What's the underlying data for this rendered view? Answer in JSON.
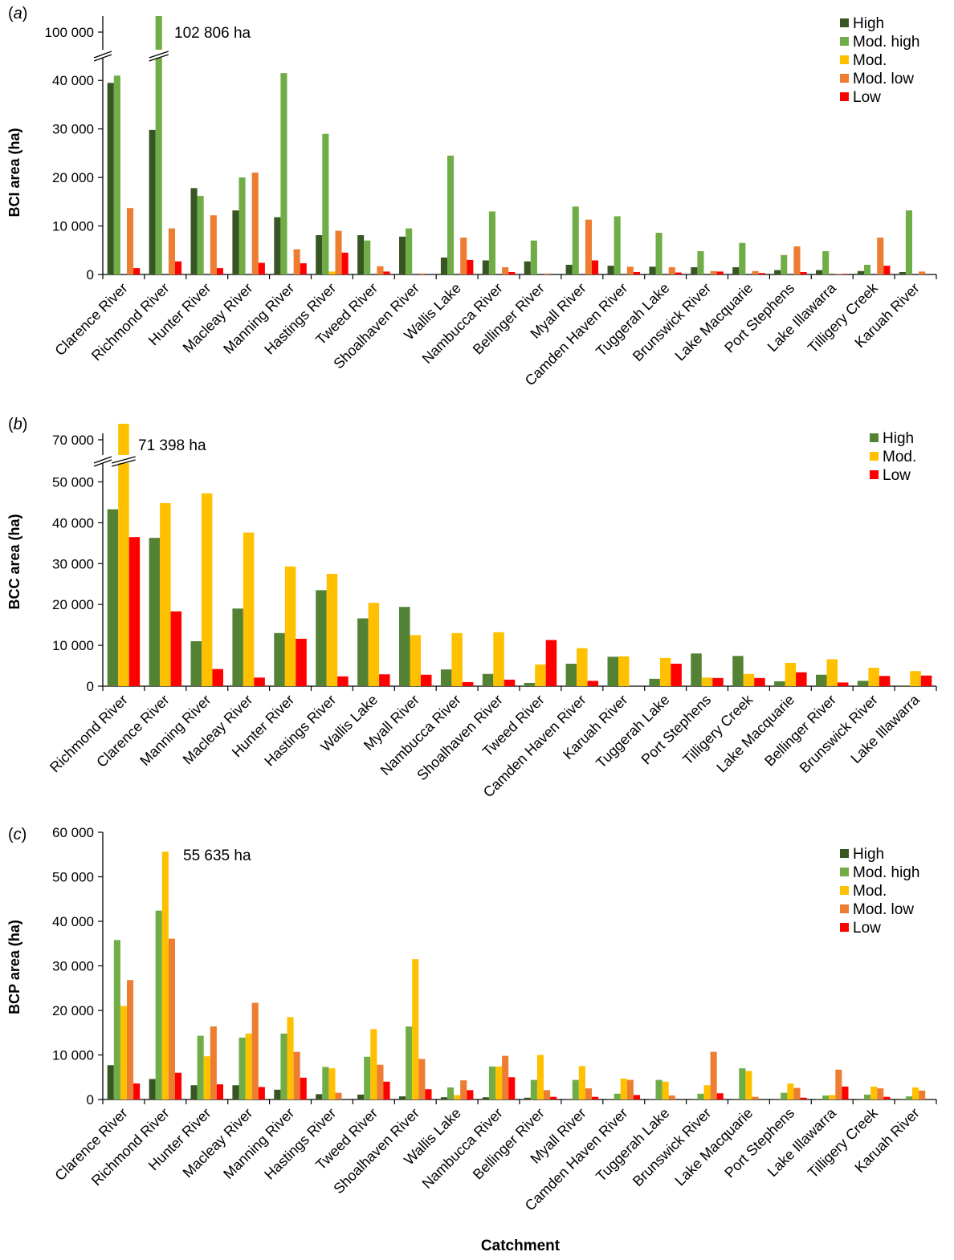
{
  "colors": {
    "High": "#375623",
    "Mod. high": "#70ad47",
    "Mod.": "#ffc000",
    "Mod. low": "#ed7d31",
    "Low": "#ff0000",
    "High_b": "#548235"
  },
  "xlabel": "Catchment",
  "chart_data": [
    {
      "panel": "a",
      "type": "bar",
      "ylabel": "BCI area (ha)",
      "ylim": [
        0,
        45000
      ],
      "yticks": [
        0,
        10000,
        20000,
        30000,
        40000
      ],
      "ytick_labels": [
        "0",
        "10 000",
        "20 000",
        "30 000",
        "40 000"
      ],
      "break_tick_label": "100 000",
      "axis_break": true,
      "annotation": "102 806 ha",
      "legend": [
        "High",
        "Mod. high",
        "Mod.",
        "Mod. low",
        "Low"
      ],
      "legend_position": "top-right",
      "categories": [
        "Clarence River",
        "Richmond River",
        "Hunter River",
        "Macleay River",
        "Manning River",
        "Hastings River",
        "Tweed River",
        "Shoalhaven River",
        "Wallis Lake",
        "Nambucca River",
        "Bellinger River",
        "Myall River",
        "Camden Haven River",
        "Tuggerah Lake",
        "Brunswick River",
        "Lake Macquarie",
        "Port Stephens",
        "Lake Illawarra",
        "Tilligery Creek",
        "Karuah River"
      ],
      "series": [
        {
          "name": "High",
          "values": [
            39500,
            29800,
            17800,
            13200,
            11800,
            8100,
            8100,
            7800,
            3500,
            2900,
            2700,
            2000,
            1800,
            1600,
            1500,
            1500,
            900,
            900,
            700,
            500
          ]
        },
        {
          "name": "Mod. high",
          "values": [
            41000,
            102806,
            16200,
            20000,
            41500,
            29000,
            7000,
            9500,
            24500,
            13000,
            7000,
            14000,
            12000,
            8600,
            4800,
            6500,
            4000,
            4800,
            2000,
            13200
          ]
        },
        {
          "name": "Mod.",
          "values": [
            0,
            0,
            0,
            0,
            0,
            600,
            0,
            0,
            0,
            0,
            0,
            0,
            0,
            0,
            0,
            0,
            0,
            0,
            0,
            0
          ]
        },
        {
          "name": "Mod. low",
          "values": [
            13700,
            9500,
            12200,
            21000,
            5200,
            9000,
            1700,
            200,
            7600,
            1500,
            200,
            11300,
            1600,
            1500,
            700,
            700,
            5800,
            100,
            7600,
            600
          ]
        },
        {
          "name": "Low",
          "values": [
            1300,
            2700,
            1300,
            2400,
            2300,
            4500,
            600,
            0,
            3000,
            500,
            0,
            2900,
            500,
            400,
            600,
            300,
            500,
            100,
            1800,
            0
          ]
        }
      ]
    },
    {
      "panel": "b",
      "type": "bar",
      "ylabel": "BCC area (ha)",
      "ylim": [
        0,
        55000
      ],
      "yticks": [
        0,
        10000,
        20000,
        30000,
        40000,
        50000
      ],
      "ytick_labels": [
        "0",
        "10 000",
        "20 000",
        "30 000",
        "40 000",
        "50 000"
      ],
      "break_tick_label": "70 000",
      "axis_break": true,
      "annotation": "71 398 ha",
      "legend": [
        "High",
        "Mod.",
        "Low"
      ],
      "legend_position": "top-right",
      "categories": [
        "Richmond River",
        "Clarence River",
        "Manning River",
        "Macleay River",
        "Hunter River",
        "Hastings River",
        "Wallis Lake",
        "Myall River",
        "Nambucca River",
        "Shoalhaven River",
        "Tweed River",
        "Camden Haven River",
        "Karuah River",
        "Tuggerah Lake",
        "Port Stephens",
        "Tilligery Creek",
        "Lake Macquarie",
        "Bellinger River",
        "Brunswick River",
        "Lake Illawarra"
      ],
      "series": [
        {
          "name": "High",
          "values": [
            43300,
            36300,
            11000,
            19000,
            13000,
            23500,
            16600,
            19400,
            4100,
            3000,
            800,
            5500,
            7200,
            1800,
            8000,
            7400,
            1200,
            2800,
            1300,
            200
          ]
        },
        {
          "name": "Mod.",
          "values": [
            71398,
            44800,
            47200,
            37600,
            29300,
            27500,
            20400,
            12500,
            13000,
            13200,
            5300,
            9300,
            7300,
            6900,
            2100,
            3000,
            5700,
            6600,
            4500,
            3700
          ]
        },
        {
          "name": "Low",
          "values": [
            36500,
            18300,
            4200,
            2100,
            11600,
            2400,
            2900,
            2800,
            1000,
            1600,
            11300,
            1300,
            0,
            5500,
            2000,
            2000,
            3400,
            900,
            2500,
            2600
          ]
        }
      ]
    },
    {
      "panel": "c",
      "type": "bar",
      "ylabel": "BCP area (ha)",
      "ylim": [
        0,
        60000
      ],
      "yticks": [
        0,
        10000,
        20000,
        30000,
        40000,
        50000,
        60000
      ],
      "ytick_labels": [
        "0",
        "10 000",
        "20 000",
        "30 000",
        "40 000",
        "50 000",
        "60 000"
      ],
      "axis_break": false,
      "annotation": "55 635 ha",
      "legend": [
        "High",
        "Mod. high",
        "Mod.",
        "Mod. low",
        "Low"
      ],
      "legend_position": "top-right",
      "categories": [
        "Clarence River",
        "Richmond River",
        "Hunter River",
        "Macleay River",
        "Manning River",
        "Hastings River",
        "Tweed River",
        "Shoalhaven River",
        "Wallis Lake",
        "Nambucca River",
        "Bellinger River",
        "Myall River",
        "Camden Haven River",
        "Tuggerah Lake",
        "Brunswick River",
        "Lake Macquarie",
        "Port Stephens",
        "Lake Illawarra",
        "Tilligery Creek",
        "Karuah River"
      ],
      "series": [
        {
          "name": "High",
          "values": [
            7700,
            4600,
            3200,
            3200,
            2200,
            1200,
            1100,
            700,
            500,
            500,
            400,
            100,
            100,
            100,
            100,
            100,
            100,
            100,
            100,
            100
          ]
        },
        {
          "name": "Mod. high",
          "values": [
            35800,
            42400,
            14300,
            13900,
            14800,
            7300,
            9600,
            16400,
            2700,
            7400,
            4400,
            4400,
            1300,
            4400,
            1300,
            7000,
            1500,
            900,
            1100,
            700
          ]
        },
        {
          "name": "Mod.",
          "values": [
            21000,
            55635,
            9700,
            14800,
            18500,
            7000,
            15800,
            31500,
            1000,
            7400,
            10000,
            7500,
            4700,
            4000,
            3200,
            6400,
            3600,
            1000,
            2900,
            2700
          ]
        },
        {
          "name": "Mod. low",
          "values": [
            26800,
            36100,
            16400,
            21700,
            10700,
            1500,
            7800,
            9100,
            4300,
            9800,
            2100,
            2500,
            4400,
            900,
            10700,
            600,
            2600,
            6700,
            2500,
            2000
          ]
        },
        {
          "name": "Low",
          "values": [
            3600,
            6000,
            3400,
            2800,
            4900,
            0,
            4000,
            2300,
            2100,
            5000,
            600,
            600,
            1000,
            0,
            1400,
            0,
            400,
            2900,
            600,
            0
          ]
        }
      ]
    }
  ]
}
